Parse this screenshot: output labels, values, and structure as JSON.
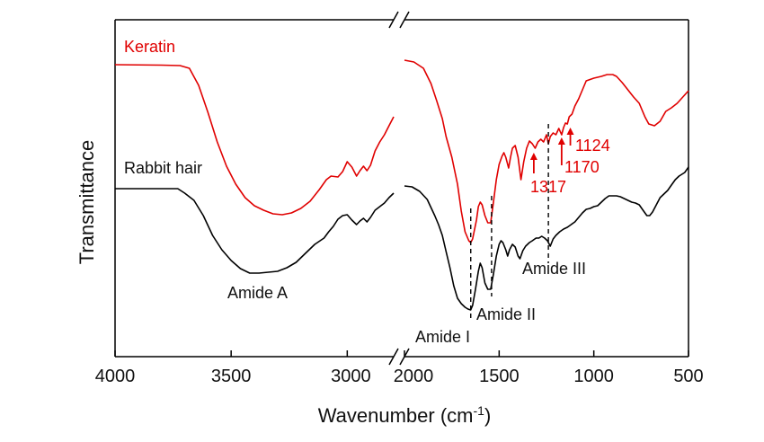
{
  "chart_data": {
    "type": "line",
    "xlabel": "Wavenumber (cm",
    "xlabel_sup": "-1",
    "xlabel_end": ")",
    "ylabel": "Transmittance",
    "x_axis": {
      "reversed": true,
      "broken": true,
      "segments": [
        {
          "range": [
            4000,
            2800
          ],
          "ticks": [
            4000,
            3500,
            3000
          ]
        },
        {
          "range": [
            2000,
            500
          ],
          "ticks": [
            2000,
            1500,
            1000,
            500
          ]
        }
      ]
    },
    "y_ticks_shown": false,
    "grid": false,
    "colors": {
      "keratin": "#e00000",
      "rabbit": "#000000",
      "axis": "#000000"
    },
    "series": [
      {
        "name": "Keratin",
        "color": "#e00000",
        "segment1": [
          [
            4000,
            72
          ],
          [
            3800,
            72.5
          ],
          [
            3720,
            73
          ],
          [
            3680,
            76
          ],
          [
            3640,
            95
          ],
          [
            3600,
            125
          ],
          [
            3560,
            158
          ],
          [
            3520,
            185
          ],
          [
            3480,
            205
          ],
          [
            3440,
            220
          ],
          [
            3400,
            229
          ],
          [
            3360,
            234
          ],
          [
            3320,
            238
          ],
          [
            3280,
            239
          ],
          [
            3240,
            237
          ],
          [
            3200,
            232
          ],
          [
            3160,
            224
          ],
          [
            3120,
            211
          ],
          [
            3090,
            200
          ],
          [
            3070,
            196
          ],
          [
            3040,
            197
          ],
          [
            3020,
            191
          ],
          [
            3000,
            180
          ],
          [
            2980,
            186
          ],
          [
            2960,
            196
          ],
          [
            2945,
            190
          ],
          [
            2930,
            185
          ],
          [
            2915,
            190
          ],
          [
            2900,
            184
          ],
          [
            2880,
            168
          ],
          [
            2860,
            158
          ],
          [
            2840,
            150
          ],
          [
            2820,
            140
          ],
          [
            2800,
            130
          ]
        ],
        "segment2": [
          [
            2000,
            67
          ],
          [
            1950,
            69
          ],
          [
            1900,
            76
          ],
          [
            1860,
            93
          ],
          [
            1830,
            112
          ],
          [
            1800,
            132
          ],
          [
            1780,
            152
          ],
          [
            1750,
            175
          ],
          [
            1720,
            205
          ],
          [
            1700,
            235
          ],
          [
            1680,
            258
          ],
          [
            1660,
            268
          ],
          [
            1650,
            270
          ],
          [
            1640,
            266
          ],
          [
            1620,
            245
          ],
          [
            1610,
            230
          ],
          [
            1600,
            225
          ],
          [
            1590,
            228
          ],
          [
            1575,
            240
          ],
          [
            1560,
            248
          ],
          [
            1545,
            248
          ],
          [
            1530,
            225
          ],
          [
            1515,
            200
          ],
          [
            1500,
            183
          ],
          [
            1485,
            174
          ],
          [
            1475,
            170
          ],
          [
            1465,
            175
          ],
          [
            1450,
            187
          ],
          [
            1440,
            175
          ],
          [
            1430,
            165
          ],
          [
            1415,
            162
          ],
          [
            1400,
            175
          ],
          [
            1385,
            200
          ],
          [
            1370,
            180
          ],
          [
            1355,
            165
          ],
          [
            1340,
            157
          ],
          [
            1325,
            160
          ],
          [
            1310,
            165
          ],
          [
            1295,
            158
          ],
          [
            1280,
            155
          ],
          [
            1265,
            158
          ],
          [
            1250,
            150
          ],
          [
            1240,
            160
          ],
          [
            1230,
            152
          ],
          [
            1215,
            148
          ],
          [
            1200,
            150
          ],
          [
            1185,
            143
          ],
          [
            1170,
            150
          ],
          [
            1160,
            142
          ],
          [
            1150,
            137
          ],
          [
            1140,
            138
          ],
          [
            1130,
            130
          ],
          [
            1115,
            127
          ],
          [
            1100,
            118
          ],
          [
            1080,
            110
          ],
          [
            1060,
            100
          ],
          [
            1040,
            90
          ],
          [
            1000,
            87
          ],
          [
            960,
            85
          ],
          [
            930,
            83
          ],
          [
            900,
            83
          ],
          [
            880,
            85
          ],
          [
            850,
            92
          ],
          [
            820,
            100
          ],
          [
            790,
            108
          ],
          [
            760,
            115
          ],
          [
            730,
            130
          ],
          [
            710,
            138
          ],
          [
            680,
            140
          ],
          [
            650,
            135
          ],
          [
            620,
            124
          ],
          [
            590,
            120
          ],
          [
            560,
            115
          ],
          [
            530,
            108
          ],
          [
            500,
            101
          ]
        ]
      },
      {
        "name": "Rabbit hair",
        "color": "#000000",
        "segment1": [
          [
            4000,
            210
          ],
          [
            3800,
            210
          ],
          [
            3730,
            210
          ],
          [
            3700,
            215
          ],
          [
            3660,
            223
          ],
          [
            3620,
            240
          ],
          [
            3580,
            262
          ],
          [
            3540,
            278
          ],
          [
            3500,
            290
          ],
          [
            3460,
            299
          ],
          [
            3420,
            304
          ],
          [
            3380,
            304
          ],
          [
            3340,
            303
          ],
          [
            3300,
            302
          ],
          [
            3260,
            298
          ],
          [
            3220,
            292
          ],
          [
            3180,
            282
          ],
          [
            3140,
            272
          ],
          [
            3100,
            265
          ],
          [
            3080,
            258
          ],
          [
            3060,
            252
          ],
          [
            3040,
            244
          ],
          [
            3020,
            240
          ],
          [
            3000,
            239
          ],
          [
            2980,
            245
          ],
          [
            2960,
            250
          ],
          [
            2945,
            246
          ],
          [
            2930,
            243
          ],
          [
            2915,
            247
          ],
          [
            2900,
            242
          ],
          [
            2880,
            234
          ],
          [
            2860,
            230
          ],
          [
            2840,
            226
          ],
          [
            2820,
            220
          ],
          [
            2800,
            215
          ]
        ],
        "segment2": [
          [
            2000,
            207
          ],
          [
            1960,
            208
          ],
          [
            1920,
            213
          ],
          [
            1880,
            222
          ],
          [
            1860,
            231
          ],
          [
            1840,
            240
          ],
          [
            1820,
            250
          ],
          [
            1800,
            262
          ],
          [
            1780,
            280
          ],
          [
            1760,
            298
          ],
          [
            1740,
            318
          ],
          [
            1720,
            332
          ],
          [
            1700,
            338
          ],
          [
            1680,
            342
          ],
          [
            1665,
            344
          ],
          [
            1650,
            345
          ],
          [
            1640,
            340
          ],
          [
            1625,
            322
          ],
          [
            1610,
            302
          ],
          [
            1600,
            293
          ],
          [
            1590,
            298
          ],
          [
            1575,
            315
          ],
          [
            1560,
            322
          ],
          [
            1545,
            322
          ],
          [
            1530,
            305
          ],
          [
            1515,
            285
          ],
          [
            1500,
            272
          ],
          [
            1490,
            268
          ],
          [
            1480,
            270
          ],
          [
            1465,
            278
          ],
          [
            1455,
            285
          ],
          [
            1445,
            278
          ],
          [
            1430,
            272
          ],
          [
            1415,
            275
          ],
          [
            1400,
            285
          ],
          [
            1390,
            288
          ],
          [
            1375,
            279
          ],
          [
            1360,
            274
          ],
          [
            1340,
            270
          ],
          [
            1325,
            268
          ],
          [
            1305,
            265
          ],
          [
            1290,
            265
          ],
          [
            1275,
            263
          ],
          [
            1260,
            265
          ],
          [
            1245,
            268
          ],
          [
            1230,
            274
          ],
          [
            1215,
            266
          ],
          [
            1200,
            262
          ],
          [
            1180,
            258
          ],
          [
            1160,
            255
          ],
          [
            1140,
            253
          ],
          [
            1120,
            250
          ],
          [
            1100,
            247
          ],
          [
            1080,
            242
          ],
          [
            1060,
            237
          ],
          [
            1040,
            233
          ],
          [
            1020,
            232
          ],
          [
            1000,
            230
          ],
          [
            980,
            229
          ],
          [
            960,
            225
          ],
          [
            940,
            221
          ],
          [
            920,
            218
          ],
          [
            900,
            218
          ],
          [
            880,
            218
          ],
          [
            860,
            219
          ],
          [
            840,
            221
          ],
          [
            820,
            223
          ],
          [
            800,
            225
          ],
          [
            780,
            226
          ],
          [
            760,
            228
          ],
          [
            740,
            234
          ],
          [
            720,
            240
          ],
          [
            705,
            240
          ],
          [
            690,
            236
          ],
          [
            670,
            228
          ],
          [
            650,
            220
          ],
          [
            630,
            216
          ],
          [
            610,
            212
          ],
          [
            590,
            206
          ],
          [
            570,
            200
          ],
          [
            550,
            196
          ],
          [
            520,
            192
          ],
          [
            500,
            186
          ]
        ]
      }
    ],
    "series_labels": {
      "keratin": "Keratin",
      "rabbit": "Rabbit hair"
    },
    "annotations": {
      "amide_a": "Amide A",
      "amide_i": "Amide I",
      "amide_ii": "Amide II",
      "amide_iii": "Amide III",
      "peak_1317": "1317",
      "peak_1170": "1170",
      "peak_1124": "1124"
    },
    "dashed_markers": [
      1650,
      1540,
      1240
    ],
    "arrow_markers": [
      1317,
      1170,
      1124
    ]
  }
}
